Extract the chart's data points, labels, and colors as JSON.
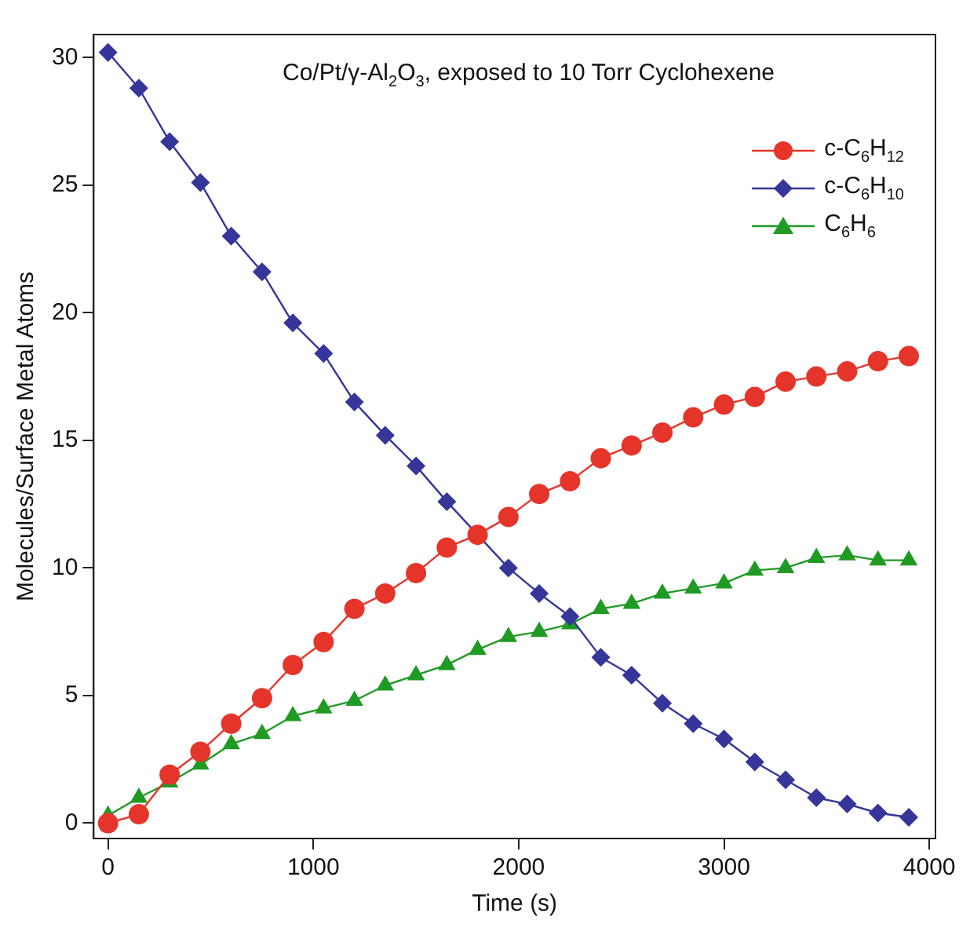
{
  "chart_data": {
    "type": "line",
    "title": "Co/Pt/γ-Al$_{2}$O$_{3}$, exposed to 10 Torr Cyclohexene",
    "xlabel": "Time (s)",
    "ylabel": "Molecules/Surface Metal Atoms",
    "x": [
      0,
      150,
      300,
      450,
      600,
      750,
      900,
      1050,
      1200,
      1350,
      1500,
      1650,
      1800,
      1950,
      2100,
      2250,
      2400,
      2550,
      2700,
      2850,
      3000,
      3150,
      3300,
      3450,
      3600,
      3750,
      3900
    ],
    "series": [
      {
        "name": "c-C$_{6}$H$_{12}$",
        "color": "#e5352b",
        "marker": "circle",
        "values": [
          0,
          0.35,
          1.9,
          2.8,
          3.9,
          4.9,
          6.2,
          7.1,
          8.4,
          9.0,
          9.8,
          10.8,
          11.3,
          12.0,
          12.9,
          13.4,
          14.3,
          14.8,
          15.3,
          15.9,
          16.4,
          16.7,
          17.3,
          17.5,
          17.7,
          18.1,
          18.3
        ]
      },
      {
        "name": "c-C$_{6}$H$_{10}$",
        "color": "#35359a",
        "marker": "diamond",
        "values": [
          30.2,
          28.8,
          26.7,
          25.1,
          23.0,
          21.6,
          19.6,
          18.4,
          16.5,
          15.2,
          14.0,
          12.6,
          11.3,
          10.0,
          9.0,
          8.1,
          6.5,
          5.8,
          4.7,
          3.9,
          3.3,
          2.4,
          1.7,
          1.0,
          0.75,
          0.4,
          0.23
        ]
      },
      {
        "name": "C$_{6}$H$_{6}$",
        "color": "#1f9a23",
        "marker": "triangle",
        "values": [
          0.3,
          1.0,
          1.6,
          2.3,
          3.1,
          3.5,
          4.2,
          4.5,
          4.8,
          5.4,
          5.8,
          6.2,
          6.8,
          7.3,
          7.5,
          7.8,
          8.4,
          8.6,
          9.0,
          9.2,
          9.4,
          9.9,
          10.0,
          10.4,
          10.5,
          10.3,
          10.3
        ]
      }
    ],
    "xlim": [
      -70,
      4030
    ],
    "xticks": [
      0,
      1000,
      2000,
      3000,
      4000
    ],
    "ylim": [
      -0.6,
      30.9
    ],
    "yticks": [
      0,
      5,
      10,
      15,
      20,
      25,
      30
    ],
    "grid": false,
    "legend": "top right",
    "line_style": "solid"
  }
}
